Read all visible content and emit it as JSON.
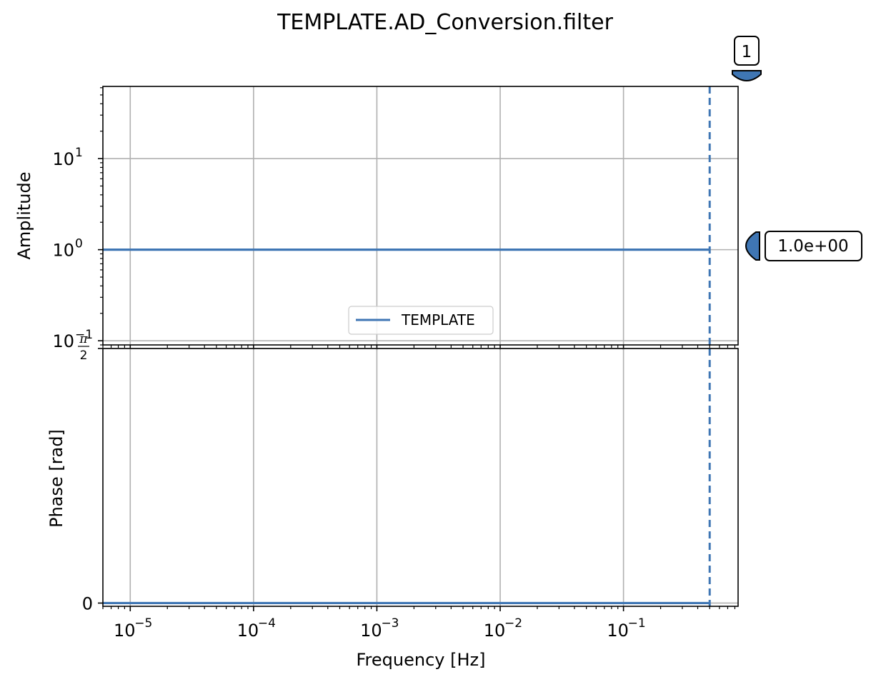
{
  "figure": {
    "title": "TEMPLATE.AD_Conversion.filter"
  },
  "colors": {
    "series": "#3f76b4",
    "grid": "#b0b0b0",
    "axes": "#000000"
  },
  "chart_data": [
    {
      "type": "line",
      "panel": "amplitude",
      "xscale": "log",
      "yscale": "log",
      "xlim": [
        6e-06,
        0.85
      ],
      "ylim": [
        0.09,
        62
      ],
      "ylabel": "Amplitude",
      "xlabel": "",
      "grid": true,
      "legend": {
        "placement": "lower-center",
        "entries": [
          "TEMPLATE"
        ]
      },
      "yticks": [
        {
          "value": 0.1,
          "base": "10",
          "exp": "−1"
        },
        {
          "value": 1,
          "base": "10",
          "exp": "0"
        },
        {
          "value": 10,
          "base": "10",
          "exp": "1"
        }
      ],
      "series": [
        {
          "name": "TEMPLATE",
          "x": [
            6e-06,
            0.5
          ],
          "y": [
            1.0,
            1.0
          ]
        }
      ],
      "vline": {
        "x": 0.5,
        "style": "dashed"
      },
      "annotations": [
        {
          "kind": "max-amplitude-marker",
          "text": "1.0e+00",
          "value": 1.0
        },
        {
          "kind": "stage-marker",
          "text": "1",
          "x": 0.5
        }
      ]
    },
    {
      "type": "line",
      "panel": "phase",
      "xscale": "log",
      "yscale": "linear",
      "xlim": [
        6e-06,
        0.85
      ],
      "ylim": [
        -0.02,
        1.5708
      ],
      "ylabel": "Phase [rad]",
      "xlabel": "Frequency [Hz]",
      "grid": true,
      "yticks": [
        {
          "value": 0,
          "label": "0"
        },
        {
          "value": 1.5708,
          "label_num": "π",
          "label_den": "2"
        }
      ],
      "xticks": [
        {
          "value": 1e-05,
          "base": "10",
          "exp": "−5"
        },
        {
          "value": 0.0001,
          "base": "10",
          "exp": "−4"
        },
        {
          "value": 0.001,
          "base": "10",
          "exp": "−3"
        },
        {
          "value": 0.01,
          "base": "10",
          "exp": "−2"
        },
        {
          "value": 0.1,
          "base": "10",
          "exp": "−1"
        }
      ],
      "series": [
        {
          "name": "TEMPLATE",
          "x": [
            6e-06,
            0.5
          ],
          "y": [
            0,
            0
          ]
        }
      ],
      "vline": {
        "x": 0.5,
        "style": "dashed"
      }
    }
  ]
}
